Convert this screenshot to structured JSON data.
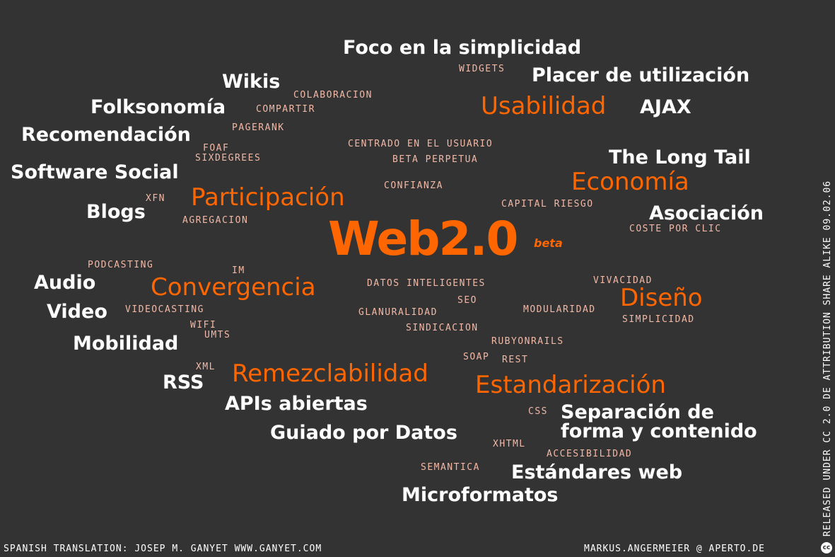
{
  "center": {
    "title": "Web2.0",
    "tag": "beta"
  },
  "white_terms": {
    "foco": "Foco en la simplicidad",
    "placer": "Placer de utilización",
    "wikis": "Wikis",
    "folksonomia": "Folksonomía",
    "ajax": "AJAX",
    "recomendacion": "Recomendación",
    "longtail": "The Long Tail",
    "softwaresocial": "Software Social",
    "blogs": "Blogs",
    "asociacion": "Asociación",
    "audio": "Audio",
    "video": "Video",
    "mobilidad": "Mobilidad",
    "rss": "RSS",
    "apis": "APIs abiertas",
    "separacion1": "Separación de",
    "separacion2": "forma y contenido",
    "guiado": "Guiado por Datos",
    "estandares": "Estándares web",
    "microformatos": "Microformatos"
  },
  "orange_terms": {
    "usabilidad": "Usabilidad",
    "economia": "Economía",
    "participacion": "Participación",
    "convergencia": "Convergencia",
    "diseno": "Diseño",
    "remezclabilidad": "Remezclabilidad",
    "estandarizacion": "Estandarización"
  },
  "small_terms": {
    "widgets": "WIDGETS",
    "colaboracion": "COLABORACION",
    "compartir": "COMPARTIR",
    "pagerank": "PAGERANK",
    "centrado": "CENTRADO EN EL USUARIO",
    "foaf": "FOAF",
    "beta": "BETA PERPETUA",
    "sixdegrees": "SIXDEGREES",
    "confianza": "CONFIANZA",
    "xfn": "XFN",
    "capital": "CAPITAL RIESGO",
    "agregacion": "AGREGACION",
    "coste": "COSTE POR CLIC",
    "podcasting": "PODCASTING",
    "im": "IM",
    "vivacidad": "VIVACIDAD",
    "datos": "DATOS INTELIGENTES",
    "seo": "SEO",
    "videocasting": "VIDEOCASTING",
    "granularidad": "GLANURALIDAD",
    "modularidad": "MODULARIDAD",
    "simplicidad": "SIMPLICIDAD",
    "wifi": "WIFI",
    "sindicacion": "SINDICACION",
    "umts": "UMTS",
    "rubyonrails": "RUBYONRAILS",
    "soap": "SOAP",
    "rest": "REST",
    "xml": "XML",
    "css": "CSS",
    "xhtml": "XHTML",
    "accesibilidad": "ACCESIBILIDAD",
    "semantica": "SEMANTICA"
  },
  "footer": {
    "translation": "SPANISH TRANSLATION: JOSEP M. GANYET WWW.GANYET.COM",
    "author": "MARKUS.ANGERMEIER @ APERTO.DE",
    "license": "RELEASED UNDER CC 2.0 DE ATTRIBUTION SHARE ALIKE 09.02.06",
    "cc_badge": "cc"
  },
  "colors": {
    "background": "#333333",
    "accent": "#ff6600",
    "small_text": "#f2b8a6",
    "white": "#ffffff"
  }
}
